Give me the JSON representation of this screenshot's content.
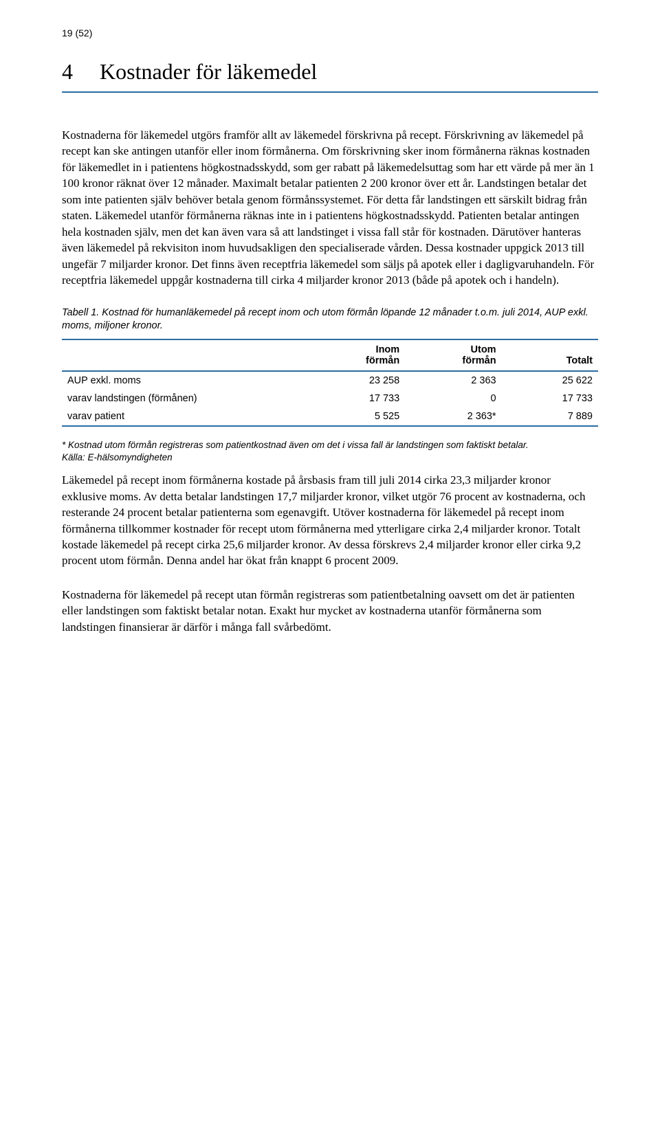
{
  "page_number": "19 (52)",
  "chapter": {
    "number": "4",
    "title": "Kostnader för läkemedel"
  },
  "para1": "Kostnaderna för läkemedel utgörs framför allt av läkemedel förskrivna på recept. Förskrivning av läkemedel på recept kan ske antingen utanför eller inom förmånerna. Om förskrivning sker inom förmånerna räknas kostnaden för läkemedlet in i patientens högkostnadsskydd, som ger rabatt på läkemedelsuttag som har ett värde på mer än 1 100 kronor räknat över 12 månader. Maximalt betalar patienten 2 200 kronor över ett år. Landstingen betalar det som inte patienten själv behöver betala genom förmånssystemet. För detta får landstingen ett särskilt bidrag från staten. Läkemedel utanför förmånerna räknas inte in i patientens högkostnadsskydd. Patienten betalar antingen hela kostnaden själv, men det kan även vara så att landstinget i vissa fall står för kostnaden. Därutöver hanteras även läkemedel på rekvisiton inom huvudsakligen den specialiserade vården. Dessa kostnader uppgick 2013 till ungefär 7 miljarder kronor. Det finns även receptfria läkemedel som säljs på apotek eller i dagligvaruhandeln. För receptfria läkemedel uppgår kostnaderna till cirka 4 miljarder kronor 2013 (både på apotek och i handeln).",
  "table": {
    "caption": "Tabell 1. Kostnad för humanläkemedel på recept inom och utom förmån löpande 12 månader t.o.m. juli 2014, AUP exkl. moms, miljoner kronor.",
    "columns": [
      {
        "label": "",
        "width": "46%",
        "align": "left"
      },
      {
        "label_line1": "Inom",
        "label_line2": "förmån",
        "width": "18%",
        "align": "right"
      },
      {
        "label_line1": "Utom",
        "label_line2": "förmån",
        "width": "18%",
        "align": "right"
      },
      {
        "label_line1": "Totalt",
        "label_line2": "",
        "width": "18%",
        "align": "right"
      }
    ],
    "rows": [
      {
        "label": "AUP exkl. moms",
        "indent": false,
        "c1": "23 258",
        "c2": "2 363",
        "c3": "25 622"
      },
      {
        "label": "varav landstingen (förmånen)",
        "indent": true,
        "c1": "17 733",
        "c2": "0",
        "c3": "17 733"
      },
      {
        "label": "varav patient",
        "indent": true,
        "c1": "5 525",
        "c2": "2 363*",
        "c3": "7 889"
      }
    ],
    "border_color": "#2b6ca3"
  },
  "footnote": "* Kostnad utom förmån registreras som patientkostnad även om det i vissa fall är landstingen som faktiskt betalar.",
  "source": "Källa: E-hälsomyndigheten",
  "para2": "Läkemedel på recept inom förmånerna kostade på årsbasis fram till juli 2014 cirka 23,3 miljarder kronor exklusive moms. Av detta betalar landstingen 17,7 miljarder kronor, vilket utgör 76 procent av kostnaderna, och resterande 24 procent betalar patienterna som egenavgift. Utöver kostnaderna för läkemedel på recept inom förmånerna tillkommer kostnader för recept utom förmånerna med ytterligare cirka 2,4 miljarder kronor. Totalt kostade läkemedel på recept cirka 25,6 miljarder kronor. Av dessa förskrevs 2,4 miljarder kronor eller cirka 9,2 procent utom förmån. Denna andel har ökat från knappt 6 procent 2009.",
  "para3": "Kostnaderna för läkemedel på recept utan förmån registreras som patientbetalning oavsett om det är patienten eller landstingen som faktiskt betalar notan. Exakt hur mycket av kostnaderna utanför förmånerna som landstingen finansierar är därför i många fall svårbedömt."
}
